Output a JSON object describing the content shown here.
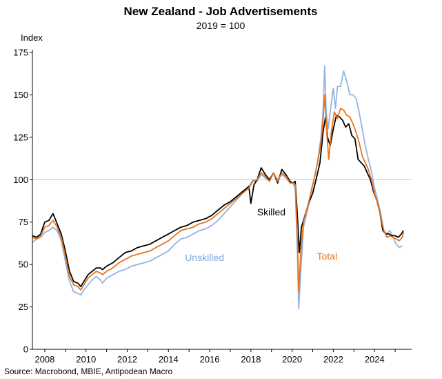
{
  "chart_data": {
    "type": "line",
    "title": "New Zealand - Job Advertisements",
    "subtitle": "2019 = 100",
    "ylabel": "Index",
    "source": "Source: Macrobond, MBIE, Antipodean Macro",
    "xlim": [
      2007.4,
      2025.8
    ],
    "ylim": [
      0,
      175
    ],
    "yticks": [
      0,
      25,
      50,
      75,
      100,
      125,
      150,
      175
    ],
    "xticks": [
      2008,
      2010,
      2012,
      2014,
      2016,
      2018,
      2020,
      2022,
      2024
    ],
    "reference_line": 100,
    "grid": false,
    "series": [
      {
        "name": "Unskilled",
        "color": "#8fb4e3",
        "points": [
          [
            2007.4,
            63
          ],
          [
            2007.6,
            65
          ],
          [
            2007.8,
            66
          ],
          [
            2008.0,
            69
          ],
          [
            2008.2,
            70
          ],
          [
            2008.4,
            72
          ],
          [
            2008.6,
            70
          ],
          [
            2008.8,
            64
          ],
          [
            2009.0,
            52
          ],
          [
            2009.2,
            40
          ],
          [
            2009.4,
            34
          ],
          [
            2009.6,
            33
          ],
          [
            2009.75,
            32
          ],
          [
            2009.9,
            35
          ],
          [
            2010.1,
            38
          ],
          [
            2010.3,
            41
          ],
          [
            2010.5,
            43
          ],
          [
            2010.7,
            41
          ],
          [
            2010.8,
            39
          ],
          [
            2011.0,
            42
          ],
          [
            2011.3,
            44
          ],
          [
            2011.6,
            46
          ],
          [
            2011.9,
            47
          ],
          [
            2012.2,
            49
          ],
          [
            2012.5,
            50
          ],
          [
            2012.8,
            51
          ],
          [
            2013.1,
            52
          ],
          [
            2013.4,
            54
          ],
          [
            2013.7,
            56
          ],
          [
            2014.0,
            58
          ],
          [
            2014.3,
            62
          ],
          [
            2014.6,
            65
          ],
          [
            2014.9,
            66
          ],
          [
            2015.2,
            68
          ],
          [
            2015.5,
            70
          ],
          [
            2015.8,
            71
          ],
          [
            2016.1,
            73
          ],
          [
            2016.4,
            76
          ],
          [
            2016.7,
            80
          ],
          [
            2017.0,
            84
          ],
          [
            2017.3,
            88
          ],
          [
            2017.6,
            92
          ],
          [
            2017.9,
            96
          ],
          [
            2018.1,
            100
          ],
          [
            2018.3,
            99
          ],
          [
            2018.5,
            103
          ],
          [
            2018.7,
            101
          ],
          [
            2018.9,
            99
          ],
          [
            2019.1,
            104
          ],
          [
            2019.3,
            100
          ],
          [
            2019.5,
            103
          ],
          [
            2019.7,
            101
          ],
          [
            2019.9,
            98
          ],
          [
            2020.05,
            98
          ],
          [
            2020.15,
            95
          ],
          [
            2020.25,
            60
          ],
          [
            2020.32,
            24
          ],
          [
            2020.42,
            45
          ],
          [
            2020.55,
            72
          ],
          [
            2020.75,
            82
          ],
          [
            2020.95,
            95
          ],
          [
            2021.1,
            102
          ],
          [
            2021.25,
            112
          ],
          [
            2021.4,
            125
          ],
          [
            2021.5,
            140
          ],
          [
            2021.58,
            167
          ],
          [
            2021.65,
            140
          ],
          [
            2021.75,
            130
          ],
          [
            2021.9,
            145
          ],
          [
            2022.0,
            154
          ],
          [
            2022.1,
            142
          ],
          [
            2022.2,
            155
          ],
          [
            2022.35,
            155
          ],
          [
            2022.5,
            164
          ],
          [
            2022.65,
            158
          ],
          [
            2022.8,
            150
          ],
          [
            2022.95,
            150
          ],
          [
            2023.1,
            148
          ],
          [
            2023.25,
            140
          ],
          [
            2023.4,
            130
          ],
          [
            2023.55,
            120
          ],
          [
            2023.7,
            112
          ],
          [
            2023.85,
            105
          ],
          [
            2024.0,
            95
          ],
          [
            2024.15,
            88
          ],
          [
            2024.3,
            80
          ],
          [
            2024.45,
            70
          ],
          [
            2024.6,
            68
          ],
          [
            2024.75,
            70
          ],
          [
            2024.9,
            66
          ],
          [
            2025.05,
            62
          ],
          [
            2025.2,
            60
          ],
          [
            2025.35,
            61
          ]
        ]
      },
      {
        "name": "Skilled",
        "color": "#000000",
        "points": [
          [
            2007.4,
            67
          ],
          [
            2007.6,
            66
          ],
          [
            2007.8,
            68
          ],
          [
            2008.0,
            75
          ],
          [
            2008.2,
            76
          ],
          [
            2008.4,
            80
          ],
          [
            2008.6,
            74
          ],
          [
            2008.8,
            68
          ],
          [
            2009.0,
            58
          ],
          [
            2009.2,
            46
          ],
          [
            2009.4,
            40
          ],
          [
            2009.6,
            39
          ],
          [
            2009.75,
            37
          ],
          [
            2009.9,
            40
          ],
          [
            2010.1,
            44
          ],
          [
            2010.3,
            46
          ],
          [
            2010.5,
            48
          ],
          [
            2010.7,
            48
          ],
          [
            2010.8,
            47
          ],
          [
            2011.0,
            49
          ],
          [
            2011.3,
            51
          ],
          [
            2011.6,
            54
          ],
          [
            2011.9,
            57
          ],
          [
            2012.2,
            58
          ],
          [
            2012.5,
            60
          ],
          [
            2012.8,
            61
          ],
          [
            2013.1,
            62
          ],
          [
            2013.4,
            64
          ],
          [
            2013.7,
            66
          ],
          [
            2014.0,
            68
          ],
          [
            2014.3,
            70
          ],
          [
            2014.6,
            72
          ],
          [
            2014.9,
            73
          ],
          [
            2015.2,
            75
          ],
          [
            2015.5,
            76
          ],
          [
            2015.8,
            77
          ],
          [
            2016.1,
            79
          ],
          [
            2016.4,
            82
          ],
          [
            2016.7,
            85
          ],
          [
            2017.0,
            87
          ],
          [
            2017.3,
            90
          ],
          [
            2017.6,
            93
          ],
          [
            2017.9,
            96
          ],
          [
            2018.0,
            86
          ],
          [
            2018.15,
            97
          ],
          [
            2018.3,
            100
          ],
          [
            2018.5,
            107
          ],
          [
            2018.7,
            103
          ],
          [
            2018.9,
            100
          ],
          [
            2019.1,
            104
          ],
          [
            2019.3,
            98
          ],
          [
            2019.5,
            106
          ],
          [
            2019.7,
            103
          ],
          [
            2019.9,
            99
          ],
          [
            2020.05,
            98
          ],
          [
            2020.15,
            99
          ],
          [
            2020.25,
            80
          ],
          [
            2020.35,
            57
          ],
          [
            2020.45,
            72
          ],
          [
            2020.6,
            78
          ],
          [
            2020.8,
            86
          ],
          [
            2021.0,
            92
          ],
          [
            2021.2,
            102
          ],
          [
            2021.35,
            110
          ],
          [
            2021.5,
            128
          ],
          [
            2021.62,
            137
          ],
          [
            2021.72,
            125
          ],
          [
            2021.85,
            120
          ],
          [
            2022.0,
            130
          ],
          [
            2022.15,
            138
          ],
          [
            2022.3,
            137
          ],
          [
            2022.45,
            135
          ],
          [
            2022.6,
            131
          ],
          [
            2022.75,
            133
          ],
          [
            2022.9,
            126
          ],
          [
            2023.05,
            124
          ],
          [
            2023.2,
            112
          ],
          [
            2023.35,
            110
          ],
          [
            2023.5,
            108
          ],
          [
            2023.65,
            104
          ],
          [
            2023.8,
            100
          ],
          [
            2023.95,
            93
          ],
          [
            2024.1,
            88
          ],
          [
            2024.25,
            81
          ],
          [
            2024.4,
            70
          ],
          [
            2024.55,
            68
          ],
          [
            2024.7,
            68
          ],
          [
            2024.85,
            67
          ],
          [
            2025.0,
            67
          ],
          [
            2025.15,
            66
          ],
          [
            2025.3,
            68
          ],
          [
            2025.4,
            70
          ]
        ]
      },
      {
        "name": "Total",
        "color": "#e8731a",
        "points": [
          [
            2007.4,
            66
          ],
          [
            2007.6,
            65
          ],
          [
            2007.8,
            67
          ],
          [
            2008.0,
            72
          ],
          [
            2008.2,
            73
          ],
          [
            2008.4,
            76
          ],
          [
            2008.6,
            72
          ],
          [
            2008.8,
            66
          ],
          [
            2009.0,
            55
          ],
          [
            2009.2,
            43
          ],
          [
            2009.4,
            38
          ],
          [
            2009.6,
            37
          ],
          [
            2009.75,
            35
          ],
          [
            2009.9,
            38
          ],
          [
            2010.1,
            42
          ],
          [
            2010.3,
            44
          ],
          [
            2010.5,
            46
          ],
          [
            2010.7,
            45
          ],
          [
            2010.8,
            44
          ],
          [
            2011.0,
            46
          ],
          [
            2011.3,
            48
          ],
          [
            2011.6,
            51
          ],
          [
            2011.9,
            53
          ],
          [
            2012.2,
            55
          ],
          [
            2012.5,
            56
          ],
          [
            2012.8,
            57
          ],
          [
            2013.1,
            58
          ],
          [
            2013.4,
            60
          ],
          [
            2013.7,
            62
          ],
          [
            2014.0,
            64
          ],
          [
            2014.3,
            67
          ],
          [
            2014.6,
            70
          ],
          [
            2014.9,
            71
          ],
          [
            2015.2,
            72
          ],
          [
            2015.5,
            74
          ],
          [
            2015.8,
            75
          ],
          [
            2016.1,
            77
          ],
          [
            2016.4,
            80
          ],
          [
            2016.7,
            83
          ],
          [
            2017.0,
            86
          ],
          [
            2017.3,
            89
          ],
          [
            2017.6,
            92
          ],
          [
            2017.9,
            95
          ],
          [
            2018.1,
            99
          ],
          [
            2018.3,
            100
          ],
          [
            2018.5,
            104
          ],
          [
            2018.7,
            102
          ],
          [
            2018.9,
            99
          ],
          [
            2019.1,
            104
          ],
          [
            2019.3,
            99
          ],
          [
            2019.5,
            104
          ],
          [
            2019.7,
            102
          ],
          [
            2019.9,
            98
          ],
          [
            2020.05,
            98
          ],
          [
            2020.15,
            97
          ],
          [
            2020.25,
            70
          ],
          [
            2020.32,
            34
          ],
          [
            2020.42,
            58
          ],
          [
            2020.55,
            75
          ],
          [
            2020.75,
            84
          ],
          [
            2020.95,
            94
          ],
          [
            2021.1,
            102
          ],
          [
            2021.25,
            111
          ],
          [
            2021.4,
            122
          ],
          [
            2021.5,
            135
          ],
          [
            2021.58,
            150
          ],
          [
            2021.68,
            128
          ],
          [
            2021.78,
            112
          ],
          [
            2021.9,
            128
          ],
          [
            2022.05,
            140
          ],
          [
            2022.2,
            136
          ],
          [
            2022.35,
            142
          ],
          [
            2022.5,
            141
          ],
          [
            2022.65,
            138
          ],
          [
            2022.8,
            137
          ],
          [
            2022.95,
            133
          ],
          [
            2023.1,
            128
          ],
          [
            2023.25,
            122
          ],
          [
            2023.4,
            114
          ],
          [
            2023.55,
            110
          ],
          [
            2023.7,
            106
          ],
          [
            2023.85,
            100
          ],
          [
            2024.0,
            92
          ],
          [
            2024.15,
            86
          ],
          [
            2024.3,
            78
          ],
          [
            2024.45,
            70
          ],
          [
            2024.6,
            66
          ],
          [
            2024.75,
            67
          ],
          [
            2024.9,
            66
          ],
          [
            2025.05,
            65
          ],
          [
            2025.2,
            64
          ],
          [
            2025.35,
            66
          ],
          [
            2025.4,
            69
          ]
        ]
      }
    ],
    "annotations": [
      {
        "text": "Skilled",
        "color": "#000000",
        "x": 2018.3,
        "y": 79
      },
      {
        "text": "Unskilled",
        "color": "#7ea6dc",
        "x": 2014.8,
        "y": 52
      },
      {
        "text": "Total",
        "color": "#e8731a",
        "x": 2021.2,
        "y": 53
      }
    ]
  }
}
